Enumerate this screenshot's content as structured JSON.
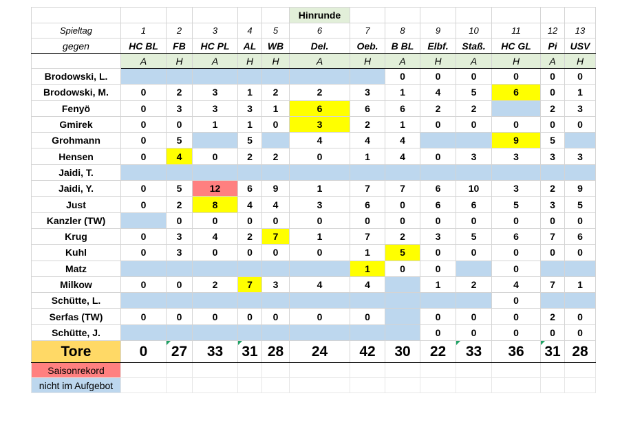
{
  "section_title": "Hinrunde",
  "labels": {
    "spieltag": "Spieltag",
    "gegen": "gegen",
    "tore": "Tore"
  },
  "matchdays": [
    "1",
    "2",
    "3",
    "4",
    "5",
    "6",
    "7",
    "8",
    "9",
    "10",
    "11",
    "12",
    "13"
  ],
  "opponents": [
    "HC BL",
    "FB",
    "HC PL",
    "AL",
    "WB",
    "Del.",
    "Oeb.",
    "B BL",
    "Elbf.",
    "Staß.",
    "HC GL",
    "Pi",
    "USV"
  ],
  "home_away": [
    "A",
    "H",
    "A",
    "H",
    "H",
    "A",
    "H",
    "A",
    "H",
    "A",
    "H",
    "A",
    "H"
  ],
  "players": [
    {
      "name": "Brodowski, L.",
      "g": [
        null,
        null,
        null,
        null,
        null,
        null,
        null,
        "0",
        "0",
        "0",
        "0",
        "0",
        "0"
      ],
      "s": [
        "n",
        "n",
        "n",
        "n",
        "n",
        "n",
        "n",
        "",
        "",
        "",
        "",
        "",
        ""
      ]
    },
    {
      "name": "Brodowski, M.",
      "g": [
        "0",
        "2",
        "3",
        "1",
        "2",
        "2",
        "3",
        "1",
        "4",
        "5",
        "6",
        "0",
        "1"
      ],
      "s": [
        "",
        "",
        "",
        "",
        "",
        "",
        "",
        "",
        "",
        "",
        "y",
        "",
        ""
      ]
    },
    {
      "name": "Fenyö",
      "g": [
        "0",
        "3",
        "3",
        "3",
        "1",
        "6",
        "6",
        "6",
        "2",
        "2",
        null,
        "2",
        "3"
      ],
      "s": [
        "",
        "",
        "",
        "",
        "",
        "y",
        "",
        "",
        "",
        "",
        "n",
        "",
        ""
      ]
    },
    {
      "name": "Gmirek",
      "g": [
        "0",
        "0",
        "1",
        "1",
        "0",
        "3",
        "2",
        "1",
        "0",
        "0",
        "0",
        "0",
        "0"
      ],
      "s": [
        "",
        "",
        "",
        "",
        "",
        "y",
        "",
        "",
        "",
        "",
        "",
        "",
        ""
      ]
    },
    {
      "name": "Grohmann",
      "g": [
        "0",
        "5",
        null,
        "5",
        null,
        "4",
        "4",
        "4",
        null,
        null,
        "9",
        "5",
        null
      ],
      "s": [
        "",
        "",
        "n",
        "",
        "n",
        "",
        "",
        "",
        "n",
        "n",
        "y",
        "",
        "n"
      ]
    },
    {
      "name": "Hensen",
      "g": [
        "0",
        "4",
        "0",
        "2",
        "2",
        "0",
        "1",
        "4",
        "0",
        "3",
        "3",
        "3",
        "3"
      ],
      "s": [
        "",
        "y",
        "",
        "",
        "",
        "",
        "",
        "",
        "",
        "",
        "",
        "",
        ""
      ]
    },
    {
      "name": "Jaidi, T.",
      "g": [
        null,
        null,
        null,
        null,
        null,
        null,
        null,
        null,
        null,
        null,
        null,
        null,
        null
      ],
      "s": [
        "n",
        "n",
        "n",
        "n",
        "n",
        "n",
        "n",
        "n",
        "n",
        "n",
        "n",
        "n",
        "n"
      ]
    },
    {
      "name": "Jaidi, Y.",
      "g": [
        "0",
        "5",
        "12",
        "6",
        "9",
        "1",
        "7",
        "7",
        "6",
        "10",
        "3",
        "2",
        "9"
      ],
      "s": [
        "",
        "",
        "r",
        "",
        "",
        "",
        "",
        "",
        "",
        "",
        "",
        "",
        ""
      ]
    },
    {
      "name": "Just",
      "g": [
        "0",
        "2",
        "8",
        "4",
        "4",
        "3",
        "6",
        "0",
        "6",
        "6",
        "5",
        "3",
        "5"
      ],
      "s": [
        "",
        "",
        "y",
        "",
        "",
        "",
        "",
        "",
        "",
        "",
        "",
        "",
        ""
      ]
    },
    {
      "name": "Kanzler (TW)",
      "g": [
        null,
        "0",
        "0",
        "0",
        "0",
        "0",
        "0",
        "0",
        "0",
        "0",
        "0",
        "0",
        "0"
      ],
      "s": [
        "n",
        "",
        "",
        "",
        "",
        "",
        "",
        "",
        "",
        "",
        "",
        "",
        ""
      ]
    },
    {
      "name": "Krug",
      "g": [
        "0",
        "3",
        "4",
        "2",
        "7",
        "1",
        "7",
        "2",
        "3",
        "5",
        "6",
        "7",
        "6"
      ],
      "s": [
        "",
        "",
        "",
        "",
        "y",
        "",
        "",
        "",
        "",
        "",
        "",
        "",
        ""
      ]
    },
    {
      "name": "Kuhl",
      "g": [
        "0",
        "3",
        "0",
        "0",
        "0",
        "0",
        "1",
        "5",
        "0",
        "0",
        "0",
        "0",
        "0"
      ],
      "s": [
        "",
        "",
        "",
        "",
        "",
        "",
        "",
        "y",
        "",
        "",
        "",
        "",
        ""
      ]
    },
    {
      "name": "Matz",
      "g": [
        null,
        null,
        null,
        null,
        null,
        null,
        "1",
        "0",
        "0",
        null,
        "0",
        null,
        null
      ],
      "s": [
        "n",
        "n",
        "n",
        "n",
        "n",
        "n",
        "y",
        "",
        "",
        "n",
        "",
        "n",
        "n"
      ]
    },
    {
      "name": "Milkow",
      "g": [
        "0",
        "0",
        "2",
        "7",
        "3",
        "4",
        "4",
        null,
        "1",
        "2",
        "4",
        "7",
        "1"
      ],
      "s": [
        "",
        "",
        "",
        "y",
        "",
        "",
        "",
        "n",
        "",
        "",
        "",
        "",
        ""
      ]
    },
    {
      "name": "Schütte, L.",
      "g": [
        null,
        null,
        null,
        null,
        null,
        null,
        null,
        null,
        null,
        null,
        "0",
        null,
        null
      ],
      "s": [
        "n",
        "n",
        "n",
        "n",
        "n",
        "n",
        "n",
        "n",
        "n",
        "n",
        "",
        "n",
        "n"
      ]
    },
    {
      "name": "Serfas (TW)",
      "g": [
        "0",
        "0",
        "0",
        "0",
        "0",
        "0",
        "0",
        null,
        "0",
        "0",
        "0",
        "2",
        "0"
      ],
      "s": [
        "",
        "",
        "",
        "",
        "",
        "",
        "",
        "n",
        "",
        "",
        "",
        "",
        ""
      ]
    },
    {
      "name": "Schütte, J.",
      "g": [
        null,
        null,
        null,
        null,
        null,
        null,
        null,
        null,
        "0",
        "0",
        "0",
        "0",
        "0"
      ],
      "s": [
        "n",
        "n",
        "n",
        "n",
        "n",
        "n",
        "n",
        "n",
        "",
        "",
        "",
        "",
        ""
      ]
    }
  ],
  "totals": [
    "0",
    "27",
    "33",
    "31",
    "28",
    "24",
    "42",
    "30",
    "22",
    "33",
    "36",
    "31",
    "28"
  ],
  "legend": {
    "record": "Saisonrekord",
    "absent": "nicht im Aufgebot"
  },
  "colors": {
    "absent": "#bdd7ee",
    "highlight": "#ffff00",
    "record": "#ff8080",
    "tore": "#ffd966",
    "header": "#e2efd9"
  }
}
